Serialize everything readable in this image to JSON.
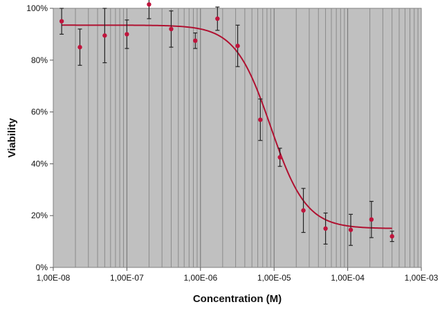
{
  "chart_data": {
    "type": "scatter",
    "title": "",
    "xlabel": "Concentration (M)",
    "ylabel": "Viability",
    "x_scale": "log",
    "xlim": [
      1e-08,
      0.001
    ],
    "ylim": [
      0,
      1.0
    ],
    "x_tick_values": [
      1e-08,
      1e-07,
      1e-06,
      1e-05,
      0.0001,
      0.001
    ],
    "x_tick_labels": [
      "1,00E-08",
      "1,00E-07",
      "1,00E-06",
      "1,00E-05",
      "1,00E-04",
      "1,00E-03"
    ],
    "y_tick_values": [
      0,
      0.2,
      0.4,
      0.6,
      0.8,
      1.0
    ],
    "y_tick_labels": [
      "0%",
      "20%",
      "40%",
      "60%",
      "80%",
      "100%"
    ],
    "grid": {
      "vertical_minor": true,
      "horizontal": false
    },
    "legend": "none",
    "colors": {
      "plot_background": "#c0c0c0",
      "points": "#c0143c",
      "fit_line": "#b01030",
      "error_bars": "#222222",
      "grid": "#7f7f7f"
    },
    "points": [
      {
        "x": 1.3e-08,
        "y": 0.95,
        "err": 0.05
      },
      {
        "x": 2.3e-08,
        "y": 0.85,
        "err": 0.07
      },
      {
        "x": 5e-08,
        "y": 0.895,
        "err": 0.105
      },
      {
        "x": 1e-07,
        "y": 0.9,
        "err": 0.055
      },
      {
        "x": 2e-07,
        "y": 1.015,
        "err": 0.055
      },
      {
        "x": 4e-07,
        "y": 0.92,
        "err": 0.07
      },
      {
        "x": 8.5e-07,
        "y": 0.875,
        "err": 0.03
      },
      {
        "x": 1.7e-06,
        "y": 0.96,
        "err": 0.045
      },
      {
        "x": 3.2e-06,
        "y": 0.855,
        "err": 0.08
      },
      {
        "x": 6.5e-06,
        "y": 0.57,
        "err": 0.08
      },
      {
        "x": 1.2e-05,
        "y": 0.425,
        "err": 0.035
      },
      {
        "x": 2.5e-05,
        "y": 0.22,
        "err": 0.085
      },
      {
        "x": 5e-05,
        "y": 0.15,
        "err": 0.06
      },
      {
        "x": 0.00011,
        "y": 0.145,
        "err": 0.06
      },
      {
        "x": 0.00021,
        "y": 0.185,
        "err": 0.07
      },
      {
        "x": 0.0004,
        "y": 0.12,
        "err": 0.02
      }
    ],
    "fit_curve": {
      "model": "sigmoid",
      "top": 0.935,
      "bottom": 0.15,
      "ec50": 9e-06,
      "hill": 1.8,
      "x_range": [
        1.3e-08,
        0.0004
      ]
    }
  }
}
